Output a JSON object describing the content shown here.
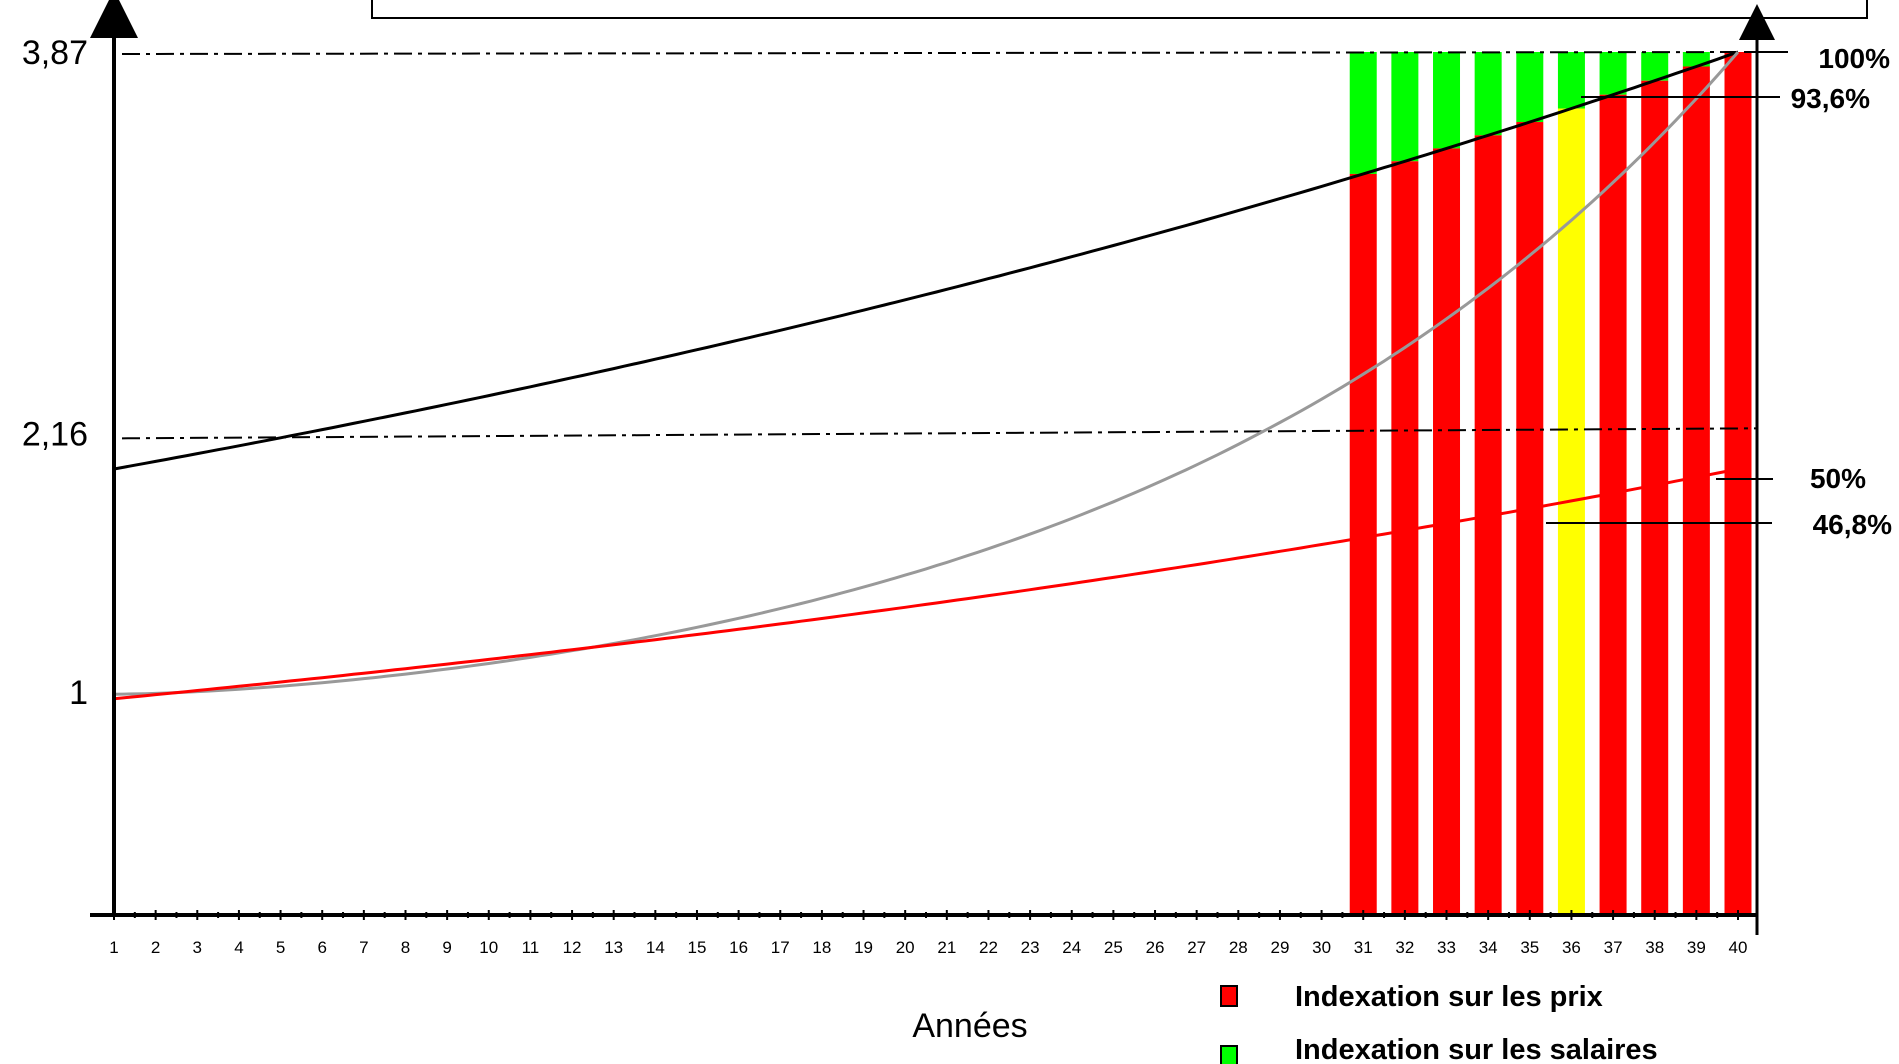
{
  "chart_data": {
    "type": "line",
    "title": "",
    "xlabel": "Années",
    "ylabel": "",
    "x": [
      1,
      2,
      3,
      4,
      5,
      6,
      7,
      8,
      9,
      10,
      11,
      12,
      13,
      14,
      15,
      16,
      17,
      18,
      19,
      20,
      21,
      22,
      23,
      24,
      25,
      26,
      27,
      28,
      29,
      30,
      31,
      32,
      33,
      34,
      35,
      36,
      37,
      38,
      39,
      40
    ],
    "xlim": [
      1,
      40
    ],
    "ylim": [
      0,
      3.87
    ],
    "y_ticks": [
      {
        "value": 1,
        "label": "1"
      },
      {
        "value": 2.16,
        "label": "2,16"
      },
      {
        "value": 3.87,
        "label": "3,87"
      }
    ],
    "series": [
      {
        "color": "#000000",
        "start": 2.0,
        "end": 3.87,
        "shape": "geometric"
      },
      {
        "color": "#999999",
        "start": 0.99,
        "end": 3.87,
        "shape": "accelerating"
      },
      {
        "color": "#ff0000",
        "start": 0.97,
        "end": 2.0,
        "shape": "geometric"
      }
    ],
    "reference_lines": [
      {
        "y": 3.87,
        "style": "dash-dot"
      },
      {
        "y": 2.16,
        "style": "dash-dot"
      }
    ],
    "bars": {
      "x": [
        31,
        32,
        33,
        34,
        35,
        36,
        37,
        38,
        39,
        40
      ],
      "top": 3.87,
      "colors": [
        "#ff0000",
        "#ff0000",
        "#ff0000",
        "#ff0000",
        "#ff0000",
        "#ffff00",
        "#ff0000",
        "#ff0000",
        "#ff0000",
        "#ff0000"
      ],
      "split_color": "#00ff00"
    },
    "annotations": [
      {
        "label": "100%",
        "y": 3.87
      },
      {
        "label": "93,6%",
        "y": 3.62
      },
      {
        "label": "50%",
        "y": 2.0
      },
      {
        "label": "46,8%",
        "y": 1.8
      }
    ],
    "legend": {
      "placement": "bottom-right",
      "entries": [
        {
          "label": "Indexation sur les prix",
          "color": "#ff0000"
        },
        {
          "label": "Indexation sur les salaires",
          "color": "#00ff00"
        }
      ]
    },
    "grid": false
  }
}
